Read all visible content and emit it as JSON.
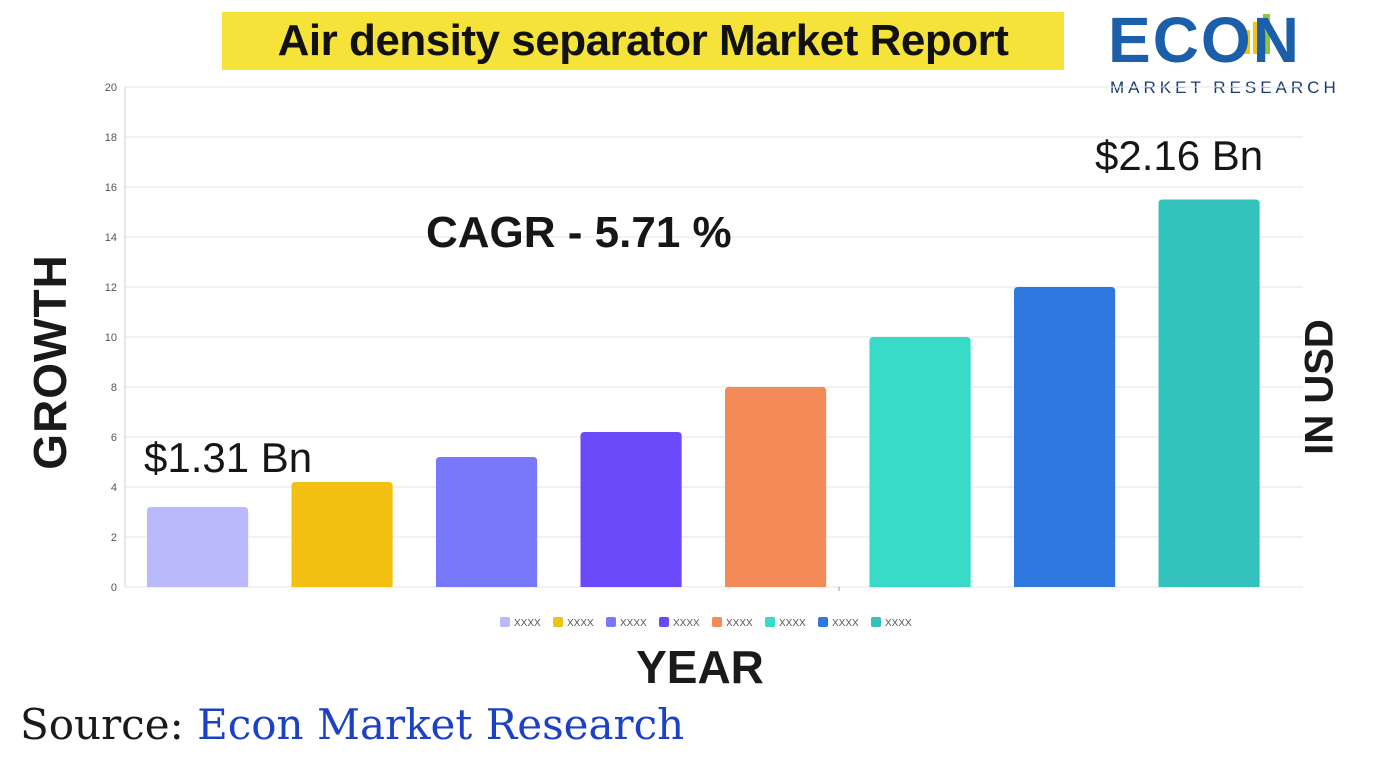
{
  "title": "Air density separator Market Report",
  "logo": {
    "word": "ECON",
    "subtitle": "MARKET RESEARCH"
  },
  "annotations": {
    "cagr": "CAGR  - 5.71 %",
    "start_value": "$1.31 Bn",
    "end_value": "$2.16 Bn"
  },
  "source": {
    "label": "Source:",
    "organization": "Econ Market Research"
  },
  "chart_data": {
    "type": "bar",
    "title": "Air density separator Market Report",
    "xlabel": "YEAR",
    "ylabel": "GROWTH",
    "ylabel_right": "IN USD",
    "ylim": [
      0,
      20
    ],
    "yticks": [
      0,
      2,
      4,
      6,
      8,
      10,
      12,
      14,
      16,
      18,
      20
    ],
    "grid": true,
    "legend_position": "bottom-center",
    "categories": [
      "XXXX",
      "XXXX",
      "XXXX",
      "XXXX",
      "XXXX",
      "XXXX",
      "XXXX",
      "XXXX"
    ],
    "values": [
      3.2,
      4.2,
      5.2,
      6.2,
      8.0,
      10.0,
      12.0,
      15.5
    ],
    "colors": [
      "#b9b9fb",
      "#f2c010",
      "#7878fa",
      "#6a4afb",
      "#f48a57",
      "#37dbc8",
      "#2f78e0",
      "#34c3bc"
    ]
  }
}
